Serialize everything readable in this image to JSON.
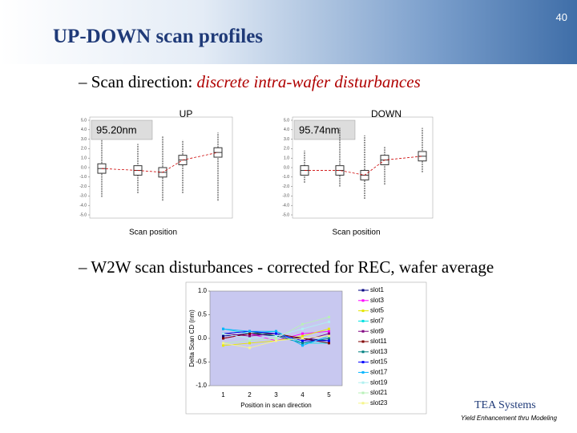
{
  "slide_number": "40",
  "title": "UP-DOWN scan profiles",
  "bullets": [
    {
      "marker": "–",
      "text": "Scan direction: ",
      "emphasis": "discrete intra-wafer disturbances"
    },
    {
      "marker": "–",
      "text": "W2W scan disturbances - corrected for REC, wafer average"
    }
  ],
  "footer": {
    "company": "TEA Systems",
    "tagline": "Yield Enhancement thru Modeling"
  },
  "chart_data": [
    {
      "type": "box",
      "title": "UP",
      "annotation": "95.20nm",
      "x_label": "Scan position",
      "categories": [
        null,
        null,
        null,
        null,
        null
      ],
      "boxes": [
        {
          "low": -3.1,
          "q1": -0.6,
          "median": -0.1,
          "q3": 0.4,
          "high": 2.9
        },
        {
          "low": -2.7,
          "q1": -0.8,
          "median": -0.3,
          "q3": 0.2,
          "high": 2.5
        },
        {
          "low": -3.5,
          "q1": -1.0,
          "median": -0.5,
          "q3": 0.0,
          "high": 3.3
        },
        {
          "low": -2.7,
          "q1": 0.3,
          "median": 0.8,
          "q3": 1.3,
          "high": 2.9
        },
        {
          "low": -3.5,
          "q1": 1.1,
          "median": 1.6,
          "q3": 2.1,
          "high": 3.7
        }
      ],
      "color": "#333333",
      "mean_color": "#cc0000",
      "ylim": [
        -5,
        5
      ],
      "yticks": [
        {
          "value": 5,
          "label": "5.0"
        },
        {
          "value": 4,
          "label": "4.0"
        },
        {
          "value": 3,
          "label": "3.0"
        },
        {
          "value": 2,
          "label": "2.0"
        },
        {
          "value": 1,
          "label": "1.0"
        },
        {
          "value": 0,
          "label": "0.0"
        },
        {
          "value": -1,
          "label": "-1.0"
        },
        {
          "value": -2,
          "label": "-2.0"
        },
        {
          "value": -3,
          "label": "-3.0"
        },
        {
          "value": -4,
          "label": "-4.0"
        },
        {
          "value": -5,
          "label": "-5.0"
        }
      ]
    },
    {
      "type": "box",
      "title": "DOWN",
      "annotation": "95.74nm",
      "x_label": "Scan position",
      "categories": [
        null,
        null,
        null,
        null,
        null
      ],
      "boxes": [
        {
          "low": -1.6,
          "q1": -0.8,
          "median": -0.3,
          "q3": 0.2,
          "high": 1.8
        },
        {
          "low": -2.0,
          "q1": -0.8,
          "median": -0.3,
          "q3": 0.2,
          "high": 4.2
        },
        {
          "low": -3.3,
          "q1": -1.3,
          "median": -0.8,
          "q3": -0.3,
          "high": 3.4
        },
        {
          "low": -1.8,
          "q1": 0.3,
          "median": 0.8,
          "q3": 1.3,
          "high": 2.2
        },
        {
          "low": -0.5,
          "q1": 0.7,
          "median": 1.2,
          "q3": 1.7,
          "high": 4.2
        }
      ],
      "color": "#333333",
      "mean_color": "#cc0000",
      "ylim": [
        -5,
        5
      ],
      "yticks": [
        {
          "value": 5,
          "label": "5.0"
        },
        {
          "value": 4,
          "label": "4.0"
        },
        {
          "value": 3,
          "label": "3.0"
        },
        {
          "value": 2,
          "label": "2.0"
        },
        {
          "value": 1,
          "label": "1.0"
        },
        {
          "value": 0,
          "label": "0.0"
        },
        {
          "value": -1,
          "label": "-1.0"
        },
        {
          "value": -2,
          "label": "-2.0"
        },
        {
          "value": -3,
          "label": "-3.0"
        },
        {
          "value": -4,
          "label": "-4.0"
        },
        {
          "value": -5,
          "label": "-5.0"
        }
      ]
    },
    {
      "type": "line",
      "x_label": "Position in scan direction",
      "y_label": "Delta Scan CD (nm)",
      "x": [
        1,
        2,
        3,
        4,
        5
      ],
      "xlim": [
        0.5,
        5.5
      ],
      "ylim": [
        -1,
        1
      ],
      "yticks": [
        {
          "value": 1,
          "label": "1.0"
        },
        0.5,
        {
          "value": 0,
          "label": "0.0"
        },
        -0.5,
        {
          "value": -1,
          "label": "-1.0"
        }
      ],
      "background": "#c8c8f0",
      "legend": "right",
      "series": [
        {
          "name": "slot1",
          "color": "#000080",
          "values": [
            0.05,
            0.1,
            0.05,
            0.0,
            -0.05
          ]
        },
        {
          "name": "slot3",
          "color": "#ff00ff",
          "values": [
            0.0,
            0.1,
            -0.05,
            0.1,
            0.15
          ]
        },
        {
          "name": "slot5",
          "color": "#e6e600",
          "values": [
            -0.15,
            -0.1,
            -0.05,
            0.05,
            0.2
          ]
        },
        {
          "name": "slot7",
          "color": "#00e0e0",
          "values": [
            0.2,
            0.1,
            0.15,
            -0.1,
            -0.1
          ]
        },
        {
          "name": "slot9",
          "color": "#800080",
          "values": [
            0.1,
            0.05,
            0.1,
            -0.05,
            0.1
          ]
        },
        {
          "name": "slot11",
          "color": "#800000",
          "values": [
            0.0,
            0.1,
            0.1,
            0.0,
            -0.1
          ]
        },
        {
          "name": "slot13",
          "color": "#008080",
          "values": [
            0.1,
            0.15,
            0.05,
            -0.1,
            0.0
          ]
        },
        {
          "name": "slot15",
          "color": "#0000ff",
          "values": [
            0.1,
            0.15,
            0.1,
            -0.05,
            -0.05
          ]
        },
        {
          "name": "slot17",
          "color": "#00b4ff",
          "values": [
            0.2,
            0.15,
            0.15,
            -0.15,
            0.05
          ]
        },
        {
          "name": "slot19",
          "color": "#b0f0f0",
          "values": [
            0.1,
            0.0,
            0.05,
            0.2,
            0.35
          ]
        },
        {
          "name": "slot21",
          "color": "#b8f0b8",
          "values": [
            -0.1,
            -0.05,
            0.0,
            0.3,
            0.45
          ]
        },
        {
          "name": "slot23",
          "color": "#f5f58a",
          "values": [
            -0.1,
            -0.2,
            -0.05,
            0.0,
            0.05
          ]
        }
      ]
    }
  ]
}
